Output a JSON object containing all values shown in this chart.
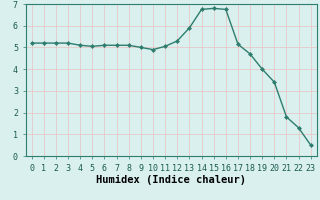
{
  "x": [
    0,
    1,
    2,
    3,
    4,
    5,
    6,
    7,
    8,
    9,
    10,
    11,
    12,
    13,
    14,
    15,
    16,
    17,
    18,
    19,
    20,
    21,
    22,
    23
  ],
  "y": [
    5.2,
    5.2,
    5.2,
    5.2,
    5.1,
    5.05,
    5.1,
    5.1,
    5.1,
    5.0,
    4.9,
    5.05,
    5.3,
    5.9,
    6.75,
    6.8,
    6.75,
    5.15,
    4.7,
    4.0,
    3.4,
    1.8,
    1.3,
    0.5
  ],
  "line_color": "#2e7d6e",
  "marker": "D",
  "marker_size": 2.0,
  "xlabel": "Humidex (Indice chaleur)",
  "xlim": [
    -0.5,
    23.5
  ],
  "ylim": [
    0,
    7
  ],
  "yticks": [
    0,
    1,
    2,
    3,
    4,
    5,
    6,
    7
  ],
  "xticks": [
    0,
    1,
    2,
    3,
    4,
    5,
    6,
    7,
    8,
    9,
    10,
    11,
    12,
    13,
    14,
    15,
    16,
    17,
    18,
    19,
    20,
    21,
    22,
    23
  ],
  "bg_color": "#d9f0ee",
  "grid_color": "#c8e8e4",
  "tick_fontsize": 6.0,
  "xlabel_fontsize": 7.5,
  "linewidth": 1.0
}
